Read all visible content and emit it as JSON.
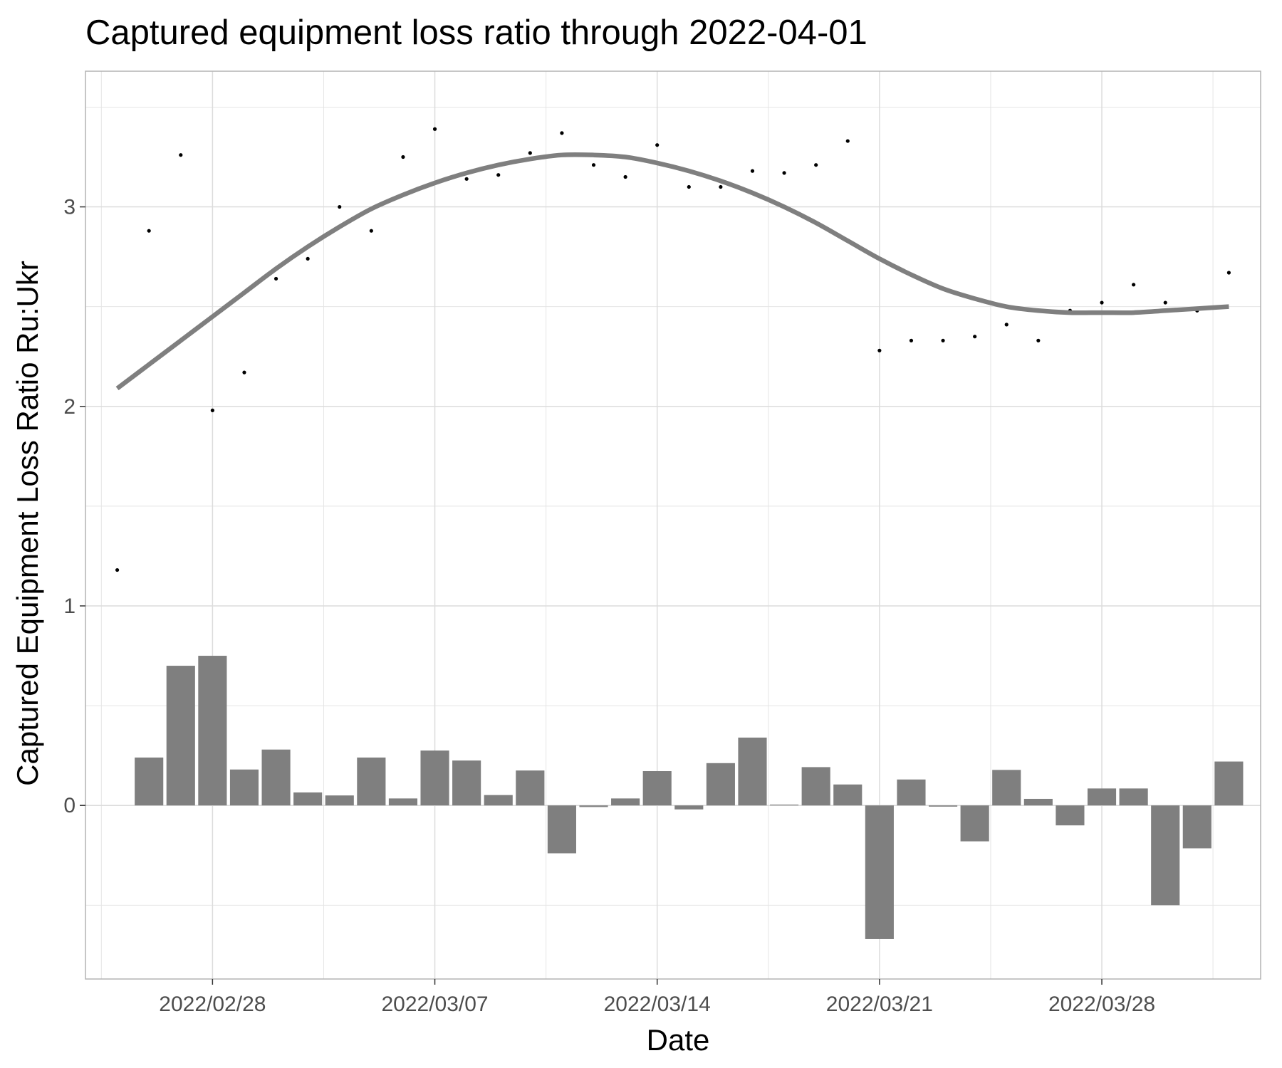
{
  "chart_data": {
    "type": "bar",
    "title": "Captured equipment loss ratio through 2022-04-01",
    "xlabel": "Date",
    "ylabel": "Captured Equipment Loss Ratio Ru:Ukr",
    "x_ticks": [
      "2022/02/28",
      "2022/03/07",
      "2022/03/14",
      "2022/03/21",
      "2022/03/28"
    ],
    "y_ticks": [
      "0",
      "1",
      "2",
      "3"
    ],
    "ylim": [
      -0.87,
      3.68
    ],
    "xlim": [
      "2022-02-24",
      "2022-04-02"
    ],
    "grid": true,
    "colors": {
      "bars": "#7f7f7f",
      "points": "#000000",
      "smooth": "#7f7f7f",
      "grid": "#e5e5e5",
      "panel_border": "#b3b3b3"
    },
    "series": [
      {
        "type": "point",
        "x": [
          "2022-02-25",
          "2022-02-26",
          "2022-02-27",
          "2022-02-28",
          "2022-03-01",
          "2022-03-02",
          "2022-03-03",
          "2022-03-04",
          "2022-03-05",
          "2022-03-06",
          "2022-03-07",
          "2022-03-08",
          "2022-03-09",
          "2022-03-10",
          "2022-03-11",
          "2022-03-12",
          "2022-03-13",
          "2022-03-14",
          "2022-03-15",
          "2022-03-16",
          "2022-03-17",
          "2022-03-18",
          "2022-03-19",
          "2022-03-20",
          "2022-03-21",
          "2022-03-22",
          "2022-03-23",
          "2022-03-24",
          "2022-03-25",
          "2022-03-26",
          "2022-03-27",
          "2022-03-28",
          "2022-03-29",
          "2022-03-30",
          "2022-03-31",
          "2022-04-01"
        ],
        "values": [
          1.18,
          2.88,
          3.26,
          1.98,
          2.17,
          2.64,
          2.74,
          3.0,
          2.88,
          3.25,
          3.39,
          3.14,
          3.16,
          3.27,
          3.37,
          3.21,
          3.15,
          3.31,
          3.1,
          3.1,
          3.18,
          3.17,
          3.21,
          3.33,
          2.28,
          2.33,
          2.33,
          2.35,
          2.41,
          2.33,
          2.48,
          2.52,
          2.61,
          2.52,
          2.48,
          2.67
        ]
      },
      {
        "type": "bar",
        "x": [
          "2022-02-26",
          "2022-02-27",
          "2022-02-28",
          "2022-03-01",
          "2022-03-02",
          "2022-03-03",
          "2022-03-04",
          "2022-03-05",
          "2022-03-06",
          "2022-03-07",
          "2022-03-08",
          "2022-03-09",
          "2022-03-10",
          "2022-03-11",
          "2022-03-12",
          "2022-03-13",
          "2022-03-14",
          "2022-03-15",
          "2022-03-16",
          "2022-03-17",
          "2022-03-18",
          "2022-03-19",
          "2022-03-20",
          "2022-03-21",
          "2022-03-22",
          "2022-03-23",
          "2022-03-24",
          "2022-03-25",
          "2022-03-26",
          "2022-03-27",
          "2022-03-28",
          "2022-03-29",
          "2022-03-30",
          "2022-03-31",
          "2022-04-01"
        ],
        "values": [
          0.24,
          0.7,
          0.75,
          0.18,
          0.28,
          0.065,
          0.05,
          0.24,
          0.035,
          0.275,
          0.225,
          0.052,
          0.175,
          -0.24,
          -0.008,
          0.035,
          0.172,
          -0.02,
          0.212,
          0.34,
          0.004,
          0.192,
          0.105,
          -0.67,
          0.13,
          -0.006,
          -0.18,
          0.178,
          0.033,
          -0.1,
          0.085,
          0.085,
          -0.5,
          -0.215,
          0.22
        ]
      },
      {
        "type": "smooth",
        "x": [
          "2022-02-25",
          "2022-02-26",
          "2022-02-27",
          "2022-02-28",
          "2022-03-01",
          "2022-03-02",
          "2022-03-03",
          "2022-03-04",
          "2022-03-05",
          "2022-03-06",
          "2022-03-07",
          "2022-03-08",
          "2022-03-09",
          "2022-03-10",
          "2022-03-11",
          "2022-03-12",
          "2022-03-13",
          "2022-03-14",
          "2022-03-15",
          "2022-03-16",
          "2022-03-17",
          "2022-03-18",
          "2022-03-19",
          "2022-03-20",
          "2022-03-21",
          "2022-03-22",
          "2022-03-23",
          "2022-03-24",
          "2022-03-25",
          "2022-03-26",
          "2022-03-27",
          "2022-03-28",
          "2022-03-29",
          "2022-03-30",
          "2022-03-31",
          "2022-04-01"
        ],
        "values": [
          2.09,
          2.21,
          2.33,
          2.45,
          2.57,
          2.69,
          2.8,
          2.9,
          2.99,
          3.06,
          3.12,
          3.17,
          3.21,
          3.24,
          3.26,
          3.26,
          3.25,
          3.22,
          3.18,
          3.13,
          3.07,
          3.0,
          2.92,
          2.83,
          2.74,
          2.66,
          2.59,
          2.54,
          2.5,
          2.48,
          2.47,
          2.47,
          2.47,
          2.48,
          2.49,
          2.5
        ]
      }
    ]
  }
}
